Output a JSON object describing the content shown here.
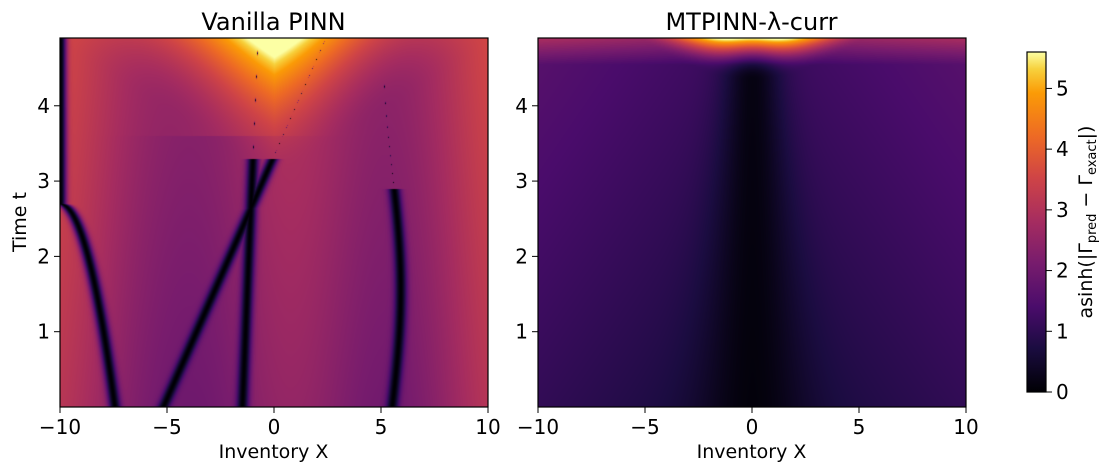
{
  "chart_data": {
    "type": "heatmap",
    "colormap": "inferno",
    "colorbar": {
      "label_prefix": "asinh(|Γ",
      "label_sub1": "pred",
      "label_mid": " − Γ",
      "label_sub2": "exact",
      "label_suffix": "|)",
      "range": [
        0,
        5.6
      ],
      "ticks": [
        "0",
        "1",
        "2",
        "3",
        "4",
        "5"
      ]
    },
    "panels": [
      {
        "title": "Vanilla PINN",
        "xlabel": "Inventory X",
        "ylabel": "Time t",
        "xlim": [
          -10,
          10
        ],
        "ylim": [
          0,
          4.9
        ],
        "xticks": [
          "−10",
          "−5",
          "0",
          "5",
          "10"
        ],
        "yticks": [
          "1",
          "2",
          "3",
          "4"
        ]
      },
      {
        "title": "MTPINN-λ-curr",
        "xlabel": "Inventory X",
        "ylabel": "",
        "xlim": [
          -10,
          10
        ],
        "ylim": [
          0,
          4.9
        ],
        "xticks": [
          "−10",
          "−5",
          "0",
          "5",
          "10"
        ],
        "yticks": [
          "1",
          "2",
          "3",
          "4"
        ]
      }
    ]
  }
}
